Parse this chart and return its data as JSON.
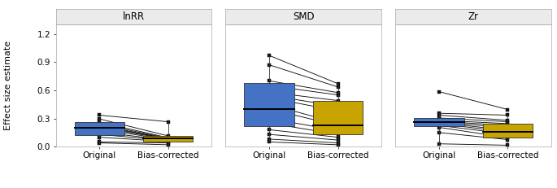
{
  "panels": [
    "lnRR",
    "SMD",
    "Zr"
  ],
  "ylim": [
    0,
    1.3
  ],
  "yticks": [
    0.0,
    0.3,
    0.6,
    0.9,
    1.2
  ],
  "ylabel": "Effect size estimate",
  "xlabel_orig": "Original",
  "xlabel_corr": "Bias-corrected",
  "blue_color": "#4472C4",
  "yellow_color": "#C8A400",
  "box_edge_color": "#333333",
  "line_color": "#111111",
  "strip_bg": "#EBEBEB",
  "strip_border": "#AAAAAA",
  "panel_border": "#BBBBBB",
  "lnRR": {
    "orig_q1": 0.12,
    "orig_median": 0.2,
    "orig_q3": 0.26,
    "orig_whisker_low": 0.04,
    "orig_whisker_high": 0.32,
    "corr_q1": 0.055,
    "corr_median": 0.085,
    "corr_q3": 0.115,
    "corr_whisker_low": 0.02,
    "corr_whisker_high": 0.265,
    "pairs_orig": [
      0.335,
      0.295,
      0.26,
      0.24,
      0.225,
      0.215,
      0.205,
      0.185,
      0.155,
      0.13,
      0.1,
      0.05,
      0.04
    ],
    "pairs_corr": [
      0.265,
      0.115,
      0.095,
      0.09,
      0.085,
      0.085,
      0.08,
      0.075,
      0.07,
      0.065,
      0.055,
      0.04,
      0.02
    ]
  },
  "SMD": {
    "orig_q1": 0.22,
    "orig_median": 0.4,
    "orig_q3": 0.68,
    "orig_whisker_low": 0.05,
    "orig_whisker_high": 0.97,
    "corr_q1": 0.13,
    "corr_median": 0.225,
    "corr_q3": 0.49,
    "corr_whisker_low": 0.02,
    "corr_whisker_high": 0.67,
    "pairs_orig": [
      0.97,
      0.87,
      0.7,
      0.65,
      0.58,
      0.545,
      0.52,
      0.45,
      0.4,
      0.3,
      0.25,
      0.18,
      0.13,
      0.08,
      0.05
    ],
    "pairs_corr": [
      0.67,
      0.635,
      0.575,
      0.55,
      0.49,
      0.43,
      0.38,
      0.25,
      0.225,
      0.17,
      0.13,
      0.1,
      0.07,
      0.04,
      0.02
    ]
  },
  "Zr": {
    "orig_q1": 0.215,
    "orig_median": 0.265,
    "orig_q3": 0.305,
    "orig_whisker_low": 0.03,
    "orig_whisker_high": 0.355,
    "corr_q1": 0.095,
    "corr_median": 0.155,
    "corr_q3": 0.245,
    "corr_whisker_low": 0.015,
    "corr_whisker_high": 0.335,
    "pairs_orig": [
      0.585,
      0.355,
      0.335,
      0.305,
      0.28,
      0.27,
      0.265,
      0.255,
      0.245,
      0.225,
      0.205,
      0.15,
      0.03
    ],
    "pairs_corr": [
      0.395,
      0.335,
      0.28,
      0.265,
      0.245,
      0.225,
      0.2,
      0.175,
      0.155,
      0.135,
      0.095,
      0.075,
      0.015
    ]
  }
}
